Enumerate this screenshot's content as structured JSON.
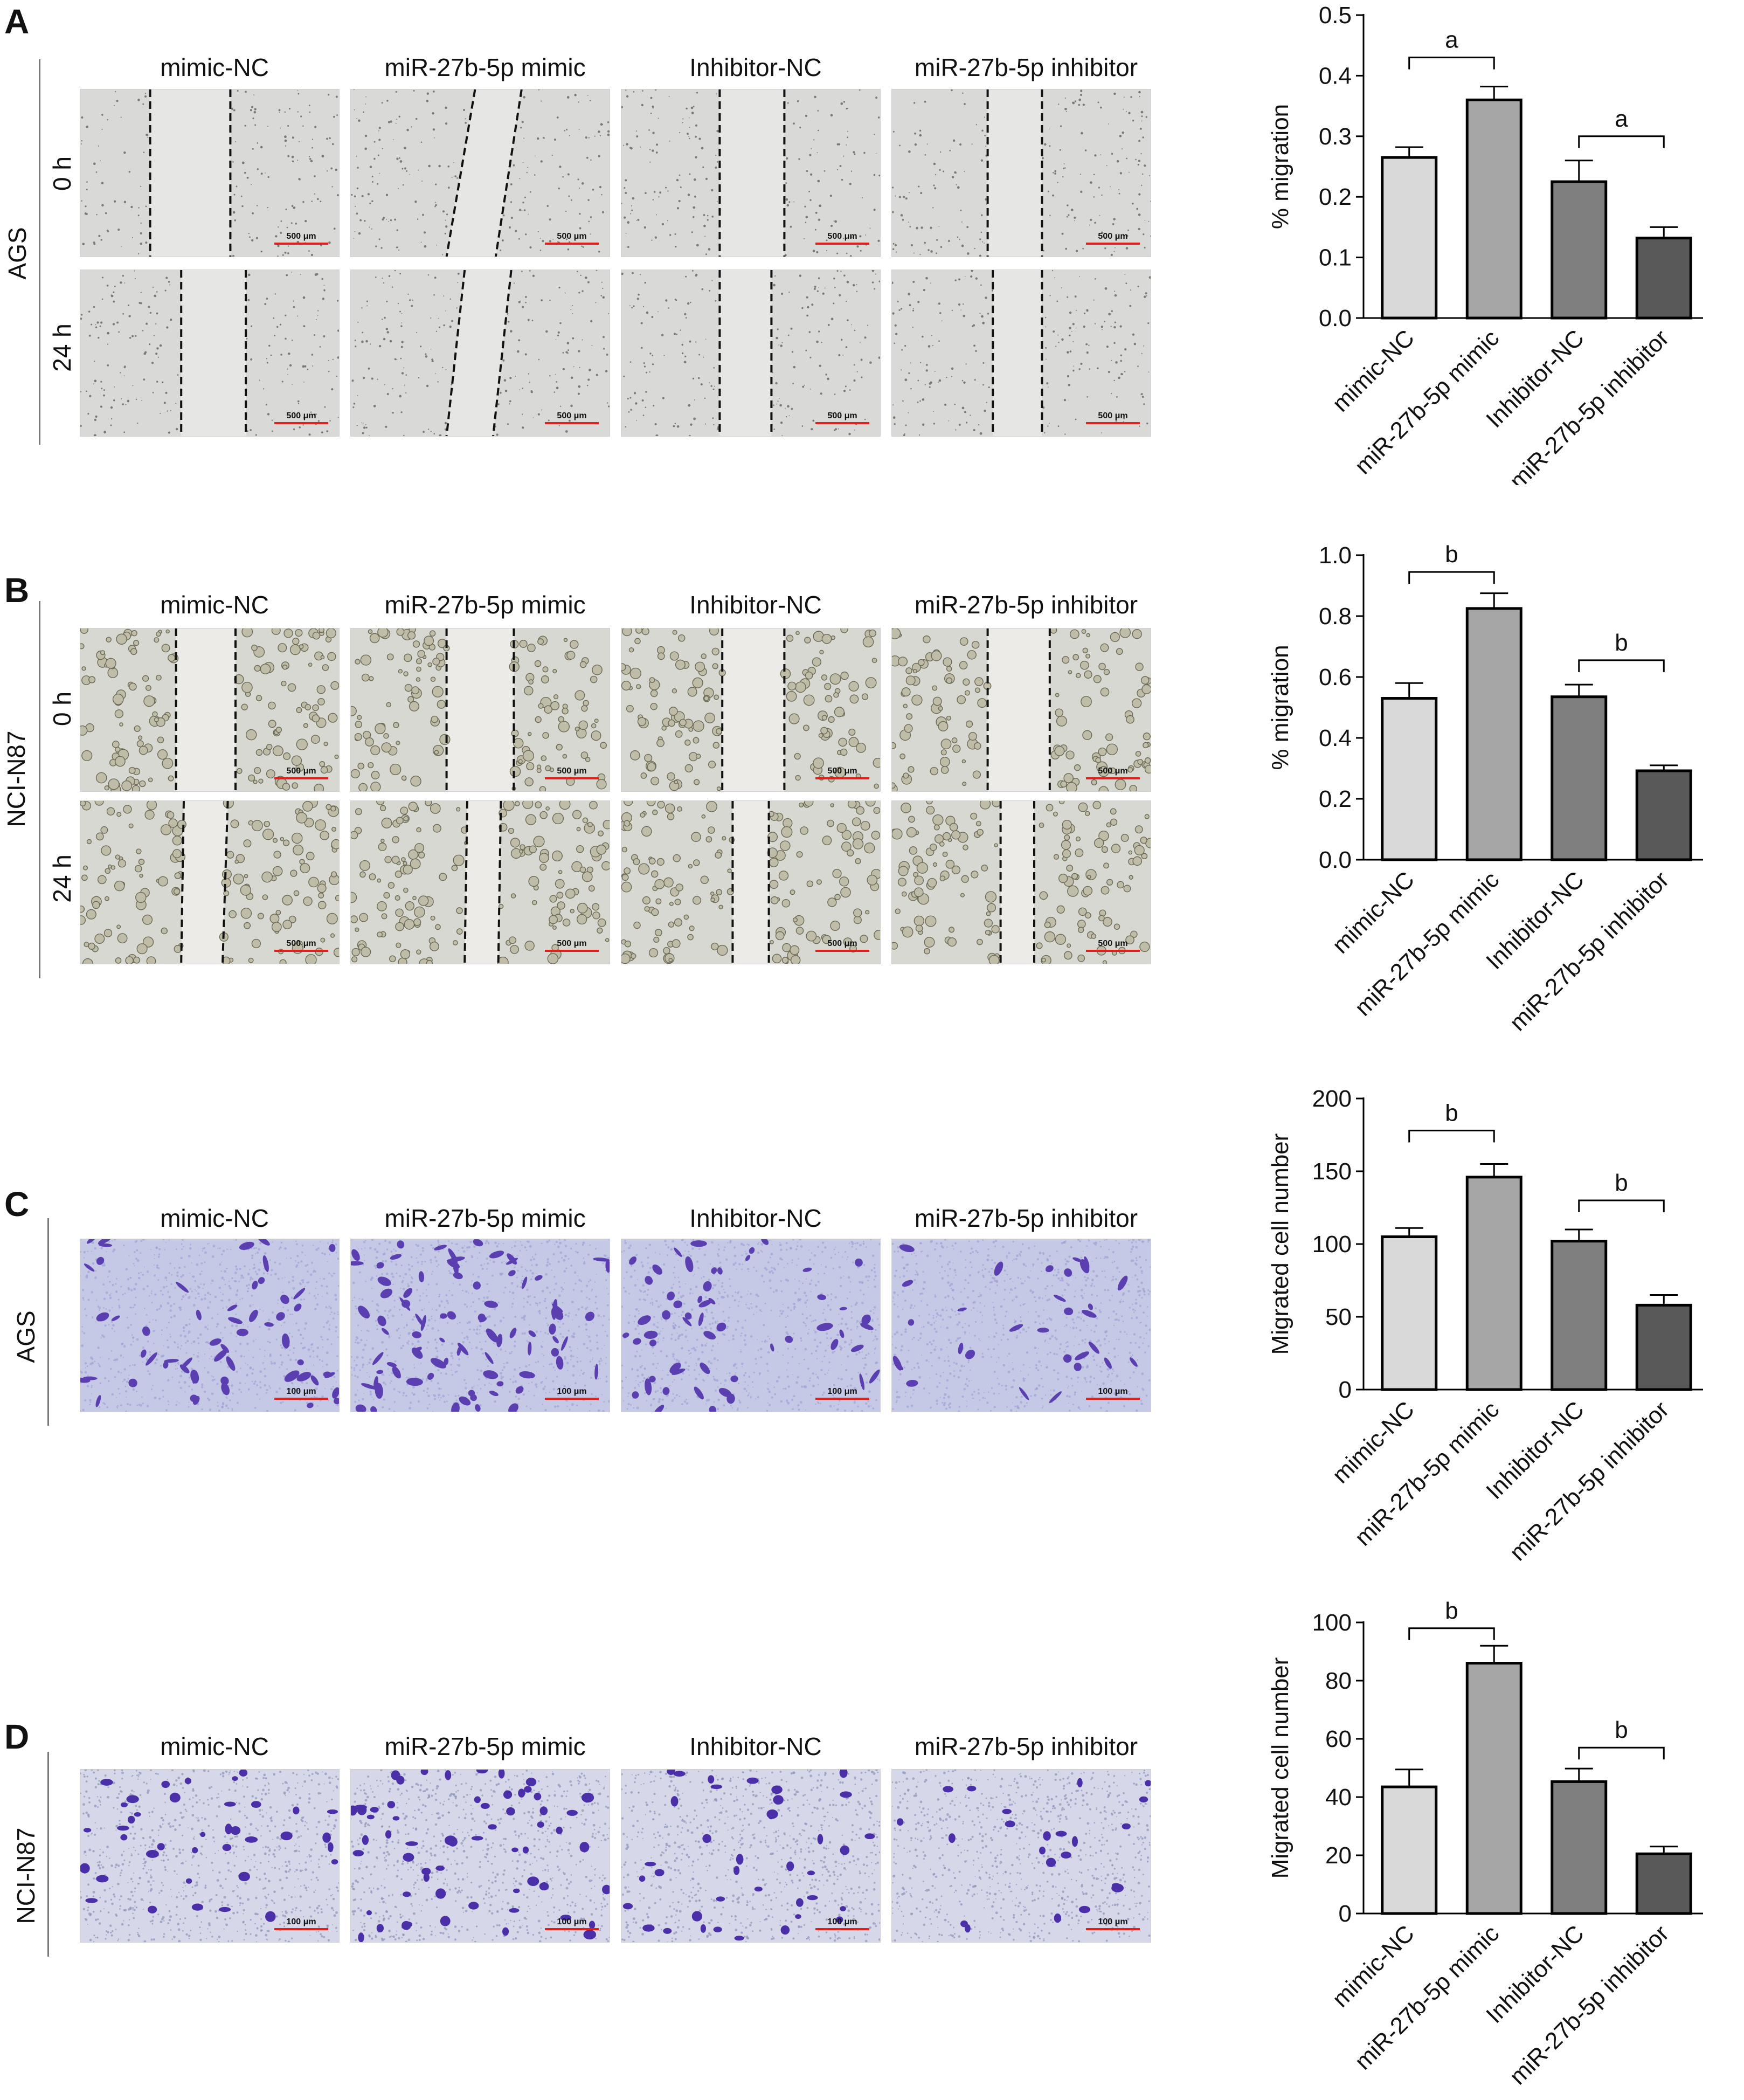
{
  "columns": [
    "mimic-NC",
    "miR-27b-5p mimic",
    "Inhibitor-NC",
    "miR-27b-5p inhibitor"
  ],
  "panels": {
    "a": {
      "label": "A",
      "cell_line": "AGS",
      "rows": [
        "0 h",
        "24 h"
      ],
      "scale": "500 μm"
    },
    "b": {
      "label": "B",
      "cell_line": "NCI-N87",
      "rows": [
        "0 h",
        "24 h"
      ],
      "scale": "500 μm"
    },
    "c": {
      "label": "C",
      "cell_line": "AGS",
      "scale": "100 μm"
    },
    "d": {
      "label": "D",
      "cell_line": "NCI-N87",
      "scale": "100 μm"
    }
  },
  "colors": {
    "bar_fills": [
      "#d9d9d9",
      "#a6a6a6",
      "#7f7f7f",
      "#595959"
    ],
    "scale_bar": "#e0201b",
    "stain": "#5b3fb0"
  },
  "chart_data": [
    {
      "type": "bar",
      "panel": "A",
      "categories": [
        "mimic-NC",
        "miR-27b-5p mimic",
        "Inhibitor-NC",
        "miR-27b-5p inhibitor"
      ],
      "values": [
        0.265,
        0.36,
        0.225,
        0.132
      ],
      "errors": [
        0.017,
        0.022,
        0.035,
        0.018
      ],
      "ylabel": "% migration",
      "ylim": [
        0,
        0.5
      ],
      "yticks": [
        0.0,
        0.1,
        0.2,
        0.3,
        0.4,
        0.5
      ],
      "decimals": 1,
      "brackets": [
        {
          "from": 0,
          "to": 1,
          "text": "a",
          "y": 0.43
        },
        {
          "from": 2,
          "to": 3,
          "text": "a",
          "y": 0.3
        }
      ]
    },
    {
      "type": "bar",
      "panel": "B",
      "categories": [
        "mimic-NC",
        "miR-27b-5p mimic",
        "Inhibitor-NC",
        "miR-27b-5p inhibitor"
      ],
      "values": [
        0.53,
        0.825,
        0.535,
        0.292
      ],
      "errors": [
        0.05,
        0.05,
        0.04,
        0.018
      ],
      "ylabel": "% migration",
      "ylim": [
        0,
        1.0
      ],
      "yticks": [
        0.0,
        0.2,
        0.4,
        0.6,
        0.8,
        1.0
      ],
      "decimals": 1,
      "brackets": [
        {
          "from": 0,
          "to": 1,
          "text": "b",
          "y": 0.945
        },
        {
          "from": 2,
          "to": 3,
          "text": "b",
          "y": 0.655
        }
      ]
    },
    {
      "type": "bar",
      "panel": "C",
      "categories": [
        "mimic-NC",
        "miR-27b-5p mimic",
        "Inhibitor-NC",
        "miR-27b-5p inhibitor"
      ],
      "values": [
        105,
        146,
        102,
        58
      ],
      "errors": [
        6,
        9,
        8,
        7
      ],
      "ylabel": "Migrated cell number",
      "ylim": [
        0,
        200
      ],
      "yticks": [
        0,
        50,
        100,
        150,
        200
      ],
      "decimals": 0,
      "brackets": [
        {
          "from": 0,
          "to": 1,
          "text": "b",
          "y": 178
        },
        {
          "from": 2,
          "to": 3,
          "text": "b",
          "y": 130
        }
      ]
    },
    {
      "type": "bar",
      "panel": "D",
      "categories": [
        "mimic-NC",
        "miR-27b-5p mimic",
        "Inhibitor-NC",
        "miR-27b-5p inhibitor"
      ],
      "values": [
        43.5,
        86,
        45.3,
        20.5
      ],
      "errors": [
        6,
        6,
        4.5,
        2.5
      ],
      "ylabel": "Migrated cell number",
      "ylim": [
        0,
        100
      ],
      "yticks": [
        0,
        20,
        40,
        60,
        80,
        100
      ],
      "decimals": 0,
      "brackets": [
        {
          "from": 0,
          "to": 1,
          "text": "b",
          "y": 98
        },
        {
          "from": 2,
          "to": 3,
          "text": "b",
          "y": 57
        }
      ]
    }
  ]
}
